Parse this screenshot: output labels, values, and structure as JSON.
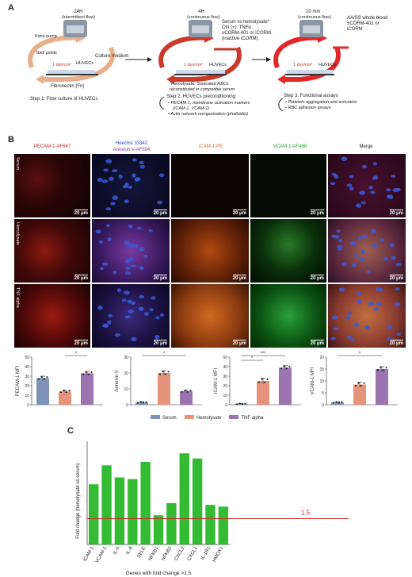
{
  "panel_a": {
    "label": "A",
    "step1": {
      "time": "24H",
      "flow": "(intermittent flow)",
      "kima": "Kima pump",
      "ibidi": "Ibidi μslide",
      "huvecs": "HUVECs",
      "shear": "1 dyn/cm²",
      "medium": "Culture medium",
      "fn": "Fibronectin (Fn)",
      "title": "Step 1: Flow culture of HUVECs"
    },
    "step2": {
      "time": "4H",
      "flow": "(continuous flow)",
      "shear": "1 dyn/cm²",
      "huvecs": "HUVECs",
      "cond1": "Serum vs hemolysate*",
      "cond2": "Ctrl (+): TNFα",
      "cond3": "±CORM-401 or iCORM",
      "cond4": "(inactive iCORM)",
      "note1": "*Hemolysate: Sonicated RBCs",
      "note2": "reconstituted in compatible serum",
      "title": "Step 2: HUVECs preconditioning",
      "b1": "PECAM-1, membrane activation markers",
      "b1b": "(ICAM-1, VCAM-1)",
      "b2": "Actin network reorganization (phalloidin)"
    },
    "step3": {
      "time": "10 min",
      "flow": "(continuous flow)",
      "shear": "1 dyn/cm²",
      "huvecs": "HUVECs",
      "c1": "AA/SS whole blood",
      "c2": "±CORM-401 or",
      "c3": "iCORM",
      "title": "Step 3: Functional assays",
      "b1": "Platelets aggregation and activation",
      "b2": "RBC adhesion assays"
    }
  },
  "panel_b": {
    "label": "B",
    "columns": [
      "PECAM-1-AF647",
      "Hoechst 33342",
      "Annexin V-AF594",
      "ICAM-1-PE",
      "VCAM-1-AF488",
      "Merge"
    ],
    "rows": [
      "Serum",
      "Hemolysate",
      "TNF alpha"
    ],
    "scale": "20 μm",
    "legend": [
      "Serum",
      "Hemolysate",
      "TNF alpha"
    ],
    "colors": {
      "serum": "#7f94b8",
      "hemolysate": "#e5937a",
      "tnf": "#9b74b0"
    }
  },
  "bar_charts": [
    {
      "type": "bar",
      "ylabel": "PECAM-1 MFI",
      "ylim": [
        0,
        50
      ],
      "ticks": [
        0,
        10,
        20,
        30,
        40,
        50
      ],
      "values": [
        28,
        14,
        33
      ],
      "errors": [
        2,
        1.5,
        2
      ],
      "sig": [
        "*"
      ]
    },
    {
      "type": "bar",
      "ylabel": "Annexin V",
      "ylim": [
        0,
        30
      ],
      "ticks": [
        0,
        10,
        20,
        30
      ],
      "values": [
        1.5,
        20,
        8.5
      ],
      "errors": [
        0.5,
        1.5,
        0.8
      ],
      "sig": [
        "*"
      ]
    },
    {
      "type": "bar",
      "ylabel": "ICAM-1 MFI",
      "ylim": [
        0,
        50
      ],
      "ticks": [
        0,
        10,
        20,
        30,
        40,
        50
      ],
      "values": [
        1,
        25,
        39
      ],
      "errors": [
        0.5,
        3,
        2
      ],
      "sig": [
        "***",
        "*"
      ]
    },
    {
      "type": "bar",
      "ylabel": "VCAM-1 MFI",
      "ylim": [
        0,
        20
      ],
      "ticks": [
        0,
        5,
        10,
        15,
        20
      ],
      "values": [
        1,
        8.5,
        15
      ],
      "errors": [
        0.3,
        1,
        1
      ],
      "sig": [
        "*"
      ]
    }
  ],
  "panel_c": {
    "label": "C"
  },
  "chart_data": {
    "type": "bar",
    "categories": [
      "ICAM-1",
      "VCAM-1",
      "IL-6",
      "IL-8",
      "SELE",
      "NFKB1",
      "NFKB2",
      "CXCL2",
      "CXCL1",
      "IL-1R1",
      "HMOX1"
    ],
    "values": [
      3.5,
      4.6,
      3.9,
      3.8,
      4.8,
      1.7,
      2.4,
      5.3,
      5.0,
      2.3,
      2.2
    ],
    "ylabel": "Fold change (hemolysate vs serum)",
    "xlabel": "Genes with fold change >1.5",
    "threshold": 1.5,
    "threshold_label": "1.5",
    "ylim": [
      0,
      6
    ],
    "color": "#33bb33",
    "threshold_color": "#cc2222"
  }
}
